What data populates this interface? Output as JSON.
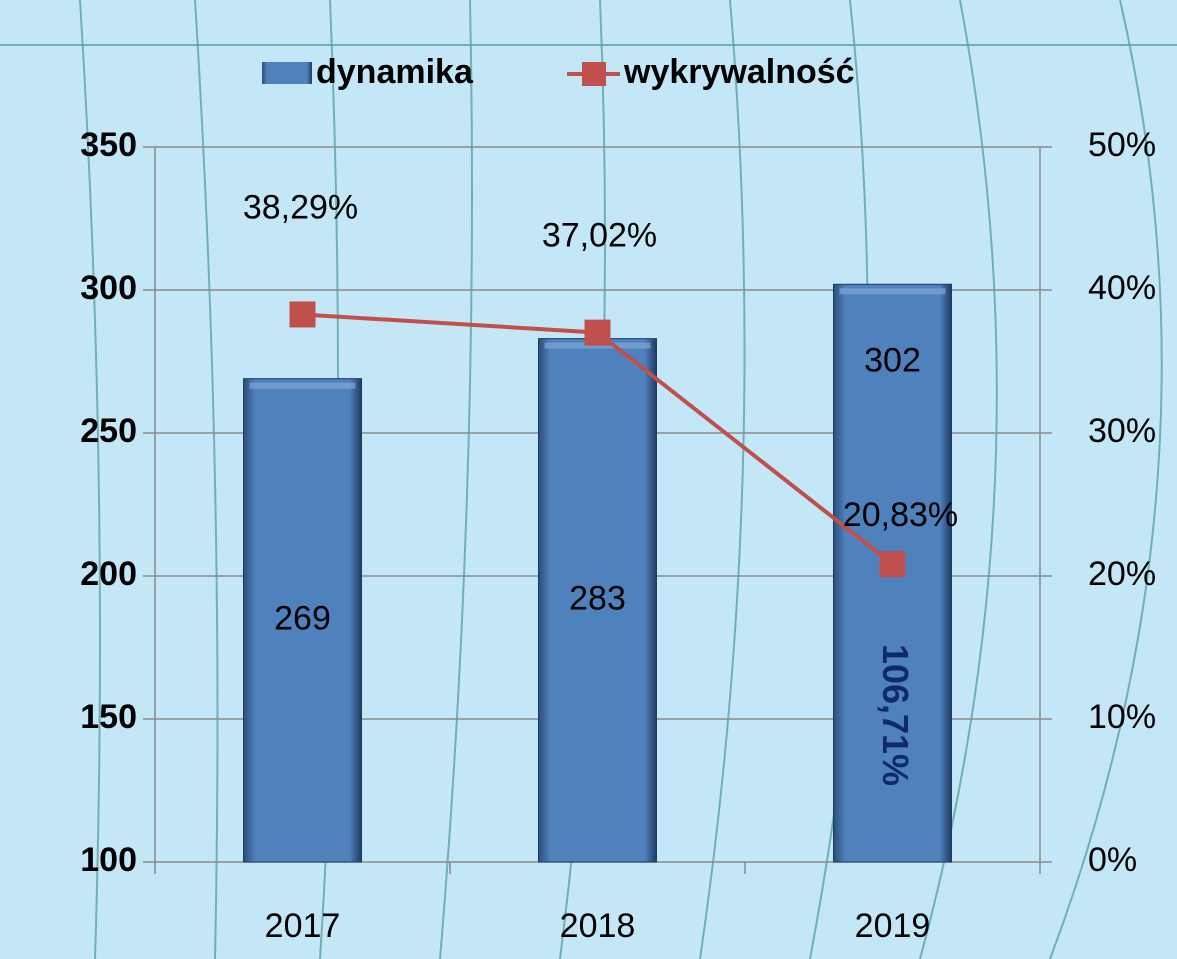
{
  "chart_data": {
    "type": "bar-line",
    "categories": [
      "2017",
      "2018",
      "2019"
    ],
    "series": [
      {
        "name": "dynamika",
        "type": "bar",
        "color": "#4f81bd",
        "values": [
          269,
          283,
          302
        ]
      },
      {
        "name": "wykrywalność",
        "type": "line",
        "axis": "y2",
        "color": "#c0504d",
        "values": [
          38.29,
          37.02,
          20.83
        ],
        "value_labels": [
          "38,29%",
          "37,02%",
          "20,83%"
        ]
      }
    ],
    "annotation": "106,71%",
    "ylim": [
      100,
      350
    ],
    "yticks": [
      100,
      150,
      200,
      250,
      300,
      350
    ],
    "y2lim": [
      0,
      50
    ],
    "y2ticks": [
      {
        "value": 0,
        "label": "0%"
      },
      {
        "value": 10,
        "label": "10%"
      },
      {
        "value": 20,
        "label": "20%"
      },
      {
        "value": 30,
        "label": "30%"
      },
      {
        "value": 40,
        "label": "40%"
      },
      {
        "value": 50,
        "label": "50%"
      }
    ],
    "grid": true,
    "legend": "top"
  }
}
